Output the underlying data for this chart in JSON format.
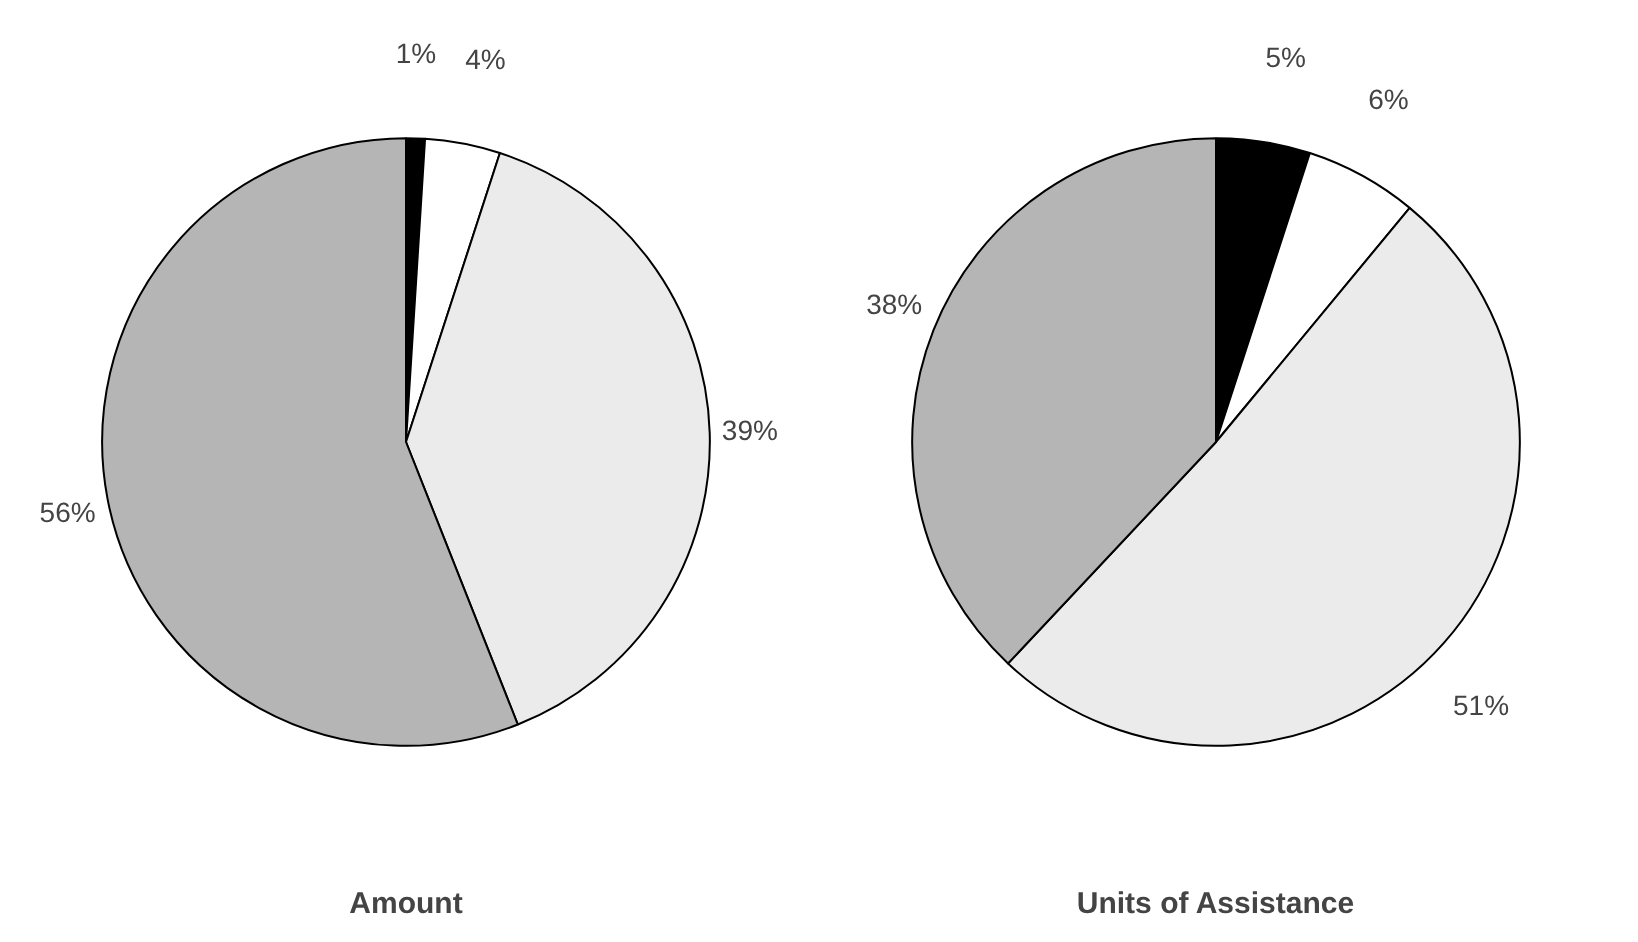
{
  "chart_data": [
    {
      "type": "pie",
      "title": "Amount",
      "categories": [
        null,
        null,
        null,
        null
      ],
      "values": [
        1,
        4,
        39,
        56
      ],
      "colors": [
        "#000000",
        "#ffffff",
        "#ebebeb",
        "#b5b5b5"
      ],
      "value_labels": [
        "1%",
        "4%",
        "39%",
        "56%"
      ]
    },
    {
      "type": "pie",
      "title": "Units of Assistance",
      "categories": [
        null,
        null,
        null,
        null
      ],
      "values": [
        5,
        6,
        51,
        38
      ],
      "colors": [
        "#000000",
        "#ffffff",
        "#ebebeb",
        "#b5b5b5"
      ],
      "value_labels": [
        "5%",
        "6%",
        "51%",
        "38%"
      ]
    }
  ]
}
